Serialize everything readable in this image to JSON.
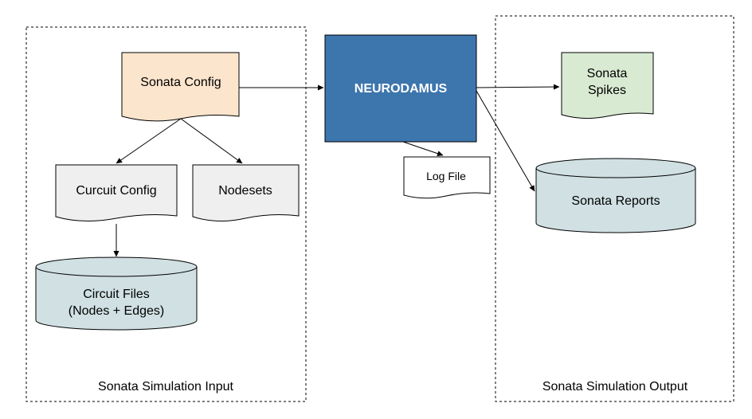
{
  "groups": {
    "input": {
      "label": "Sonata Simulation Input"
    },
    "output": {
      "label": "Sonata Simulation Output"
    }
  },
  "nodes": {
    "sonata_config": {
      "label": "Sonata Config",
      "color": "#fce5cd"
    },
    "curcuit_config": {
      "label": "Curcuit Config",
      "color": "#efefef"
    },
    "nodesets": {
      "label": "Nodesets",
      "color": "#efefef"
    },
    "circuit_files": {
      "line1": "Circuit Files",
      "line2": "(Nodes + Edges)",
      "color": "#d0e0e3"
    },
    "neurodamus": {
      "label": "NEURODAMUS",
      "color": "#3d75ad"
    },
    "log_file": {
      "label": "Log File",
      "color": "#ffffff"
    },
    "sonata_spikes": {
      "line1": "Sonata",
      "line2": "Spikes",
      "color": "#d9ead3"
    },
    "sonata_reports": {
      "label": "Sonata Reports",
      "color": "#d0e0e3"
    }
  },
  "edges": [
    {
      "from": "sonata_config",
      "to": "neurodamus"
    },
    {
      "from": "sonata_config",
      "to": "curcuit_config"
    },
    {
      "from": "sonata_config",
      "to": "nodesets"
    },
    {
      "from": "curcuit_config",
      "to": "circuit_files"
    },
    {
      "from": "neurodamus",
      "to": "sonata_spikes"
    },
    {
      "from": "neurodamus",
      "to": "log_file"
    },
    {
      "from": "neurodamus",
      "to": "sonata_reports"
    }
  ]
}
